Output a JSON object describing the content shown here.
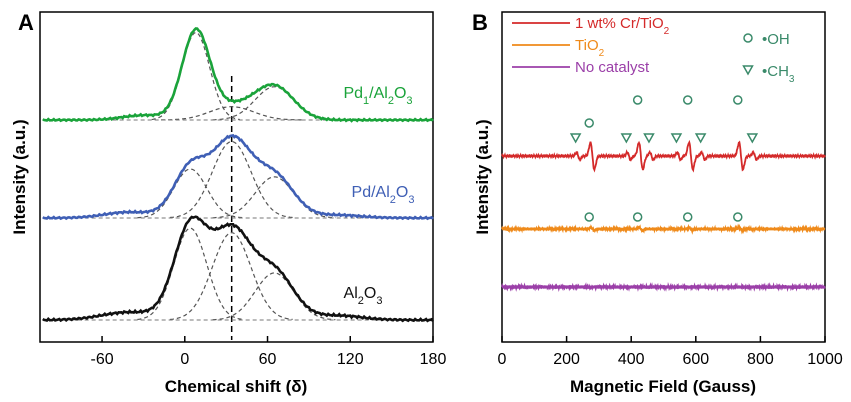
{
  "colors": {
    "green": "#1aa33a",
    "blue": "#3f5fb5",
    "black": "#111111",
    "red": "#d42a2a",
    "orange": "#ef8a1a",
    "purple": "#9b3fa8",
    "marker": "#3a8a6a",
    "red_text": "#d42a2a",
    "orange_text": "#ef8a1a",
    "purple_text": "#9b3fa8"
  },
  "chart_data": [
    {
      "type": "line",
      "panel_label": "A",
      "xlabel": "Chemical shift (δ)",
      "ylabel": "Intensity (a.u.)",
      "xlim": [
        -105,
        180
      ],
      "xticks": [
        -60,
        0,
        60,
        120,
        180
      ],
      "xtick_labels": [
        "-60",
        "0",
        "60",
        "120",
        "180"
      ],
      "vline_x": 34,
      "series": [
        {
          "name": "Pd1/Al2O3",
          "label_html": "Pd<tspan baseline-shift='sub' font-size='11'>1</tspan>/Al<tspan baseline-shift='sub' font-size='11'>2</tspan>O<tspan baseline-shift='sub' font-size='11'>3</tspan>",
          "color_key": "green",
          "peaks": [
            {
              "center": 8,
              "height": 0.92,
              "width": 10
            },
            {
              "center": 34,
              "height": 0.14,
              "width": 16
            },
            {
              "center": 65,
              "height": 0.35,
              "width": 14
            },
            {
              "center": -30,
              "height": 0.05,
              "width": 15
            }
          ]
        },
        {
          "name": "Pd/Al2O3",
          "label_html": "Pd/Al<tspan baseline-shift='sub' font-size='11'>2</tspan>O<tspan baseline-shift='sub' font-size='11'>3</tspan>",
          "color_key": "blue",
          "peaks": [
            {
              "center": 4,
              "height": 0.5,
              "width": 12
            },
            {
              "center": 34,
              "height": 0.78,
              "width": 14
            },
            {
              "center": 65,
              "height": 0.42,
              "width": 14
            },
            {
              "center": -40,
              "height": 0.06,
              "width": 18
            },
            {
              "center": 110,
              "height": 0.03,
              "width": 18
            }
          ]
        },
        {
          "name": "Al2O3",
          "label_html": "Al<tspan baseline-shift='sub' font-size='11'>2</tspan>O<tspan baseline-shift='sub' font-size='11'>3</tspan>",
          "color_key": "black",
          "peaks": [
            {
              "center": 4,
              "height": 0.82,
              "width": 12
            },
            {
              "center": 34,
              "height": 0.78,
              "width": 14
            },
            {
              "center": 65,
              "height": 0.42,
              "width": 14
            },
            {
              "center": -40,
              "height": 0.07,
              "width": 20
            },
            {
              "center": 110,
              "height": 0.04,
              "width": 18
            }
          ]
        }
      ]
    },
    {
      "type": "line",
      "panel_label": "B",
      "xlabel": "Magnetic Field (Gauss)",
      "ylabel": "Intensity (a.u.)",
      "xlim": [
        0,
        1000
      ],
      "xticks": [
        0,
        200,
        400,
        600,
        800,
        1000
      ],
      "xtick_labels": [
        "0",
        "200",
        "400",
        "600",
        "800",
        "1000"
      ],
      "series": [
        {
          "name": "1 wt% Cr/TiO2",
          "label_html": "1 wt% Cr/TiO<tspan baseline-shift='sub' font-size='10'>2</tspan>",
          "color_key": "red",
          "features": {
            "oh": [
              270,
              420,
              575,
              730
            ],
            "ch3": [
              228,
              385,
              455,
              540,
              615,
              775
            ]
          }
        },
        {
          "name": "TiO2",
          "label_html": "TiO<tspan baseline-shift='sub' font-size='10'>2</tspan>",
          "color_key": "orange"
        },
        {
          "name": "No catalyst",
          "label_html": "No catalyst",
          "color_key": "purple"
        }
      ],
      "legend_markers": [
        {
          "symbol": "circle",
          "label": "•OH",
          "label_html": "•OH"
        },
        {
          "symbol": "triangle",
          "label": "•CH3",
          "label_html": "•CH<tspan baseline-shift='sub' font-size='10'>3</tspan>"
        }
      ],
      "oh_markers_red": [
        270,
        420,
        575,
        730
      ],
      "ch3_markers_red": [
        228,
        385,
        455,
        540,
        615,
        775
      ],
      "oh_markers_orange": [
        270,
        420,
        575,
        730
      ]
    }
  ]
}
